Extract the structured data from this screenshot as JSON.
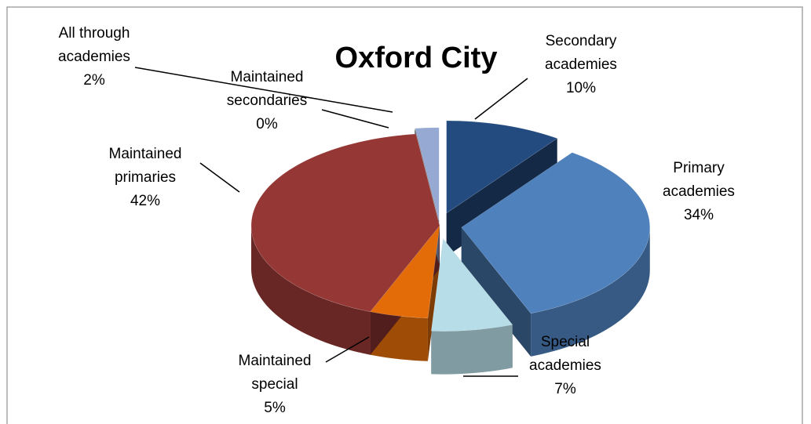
{
  "chart_data": {
    "type": "pie",
    "title": "Oxford City",
    "categories": [
      "Secondary academies",
      "Primary academies",
      "Special academies",
      "Maintained special",
      "Maintained primaries",
      "Maintained secondaries",
      "All through academies"
    ],
    "values": [
      10,
      34,
      7,
      5,
      42,
      0,
      2
    ],
    "value_labels": [
      "10%",
      "34%",
      "7%",
      "5%",
      "42%",
      "0%",
      "2%"
    ],
    "colors": [
      "#234b80",
      "#4f81bd",
      "#b7dde8",
      "#e36c09",
      "#953735",
      "#7f7f7f",
      "#95a9d3"
    ]
  }
}
